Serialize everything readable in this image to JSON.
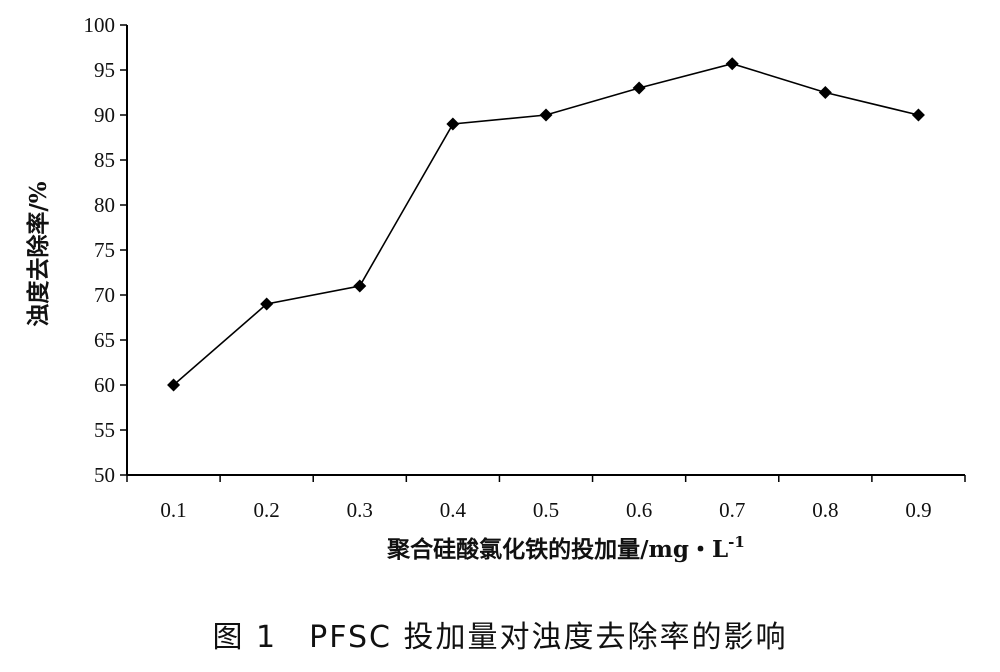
{
  "chart_data": {
    "type": "line",
    "xlabel": "聚合硅酸氯化铁的投加量/mg・L",
    "xlabel_superscript": "-1",
    "ylabel": "浊度去除率/%",
    "x": [
      0.1,
      0.2,
      0.3,
      0.4,
      0.5,
      0.6,
      0.7,
      0.8,
      0.9
    ],
    "x_tick_labels": [
      "0.1",
      "0.2",
      "0.3",
      "0.4",
      "0.5",
      "0.6",
      "0.7",
      "0.8",
      "0.9"
    ],
    "series": [
      {
        "values": [
          60,
          69,
          71,
          89,
          90,
          93,
          95.7,
          92.5,
          90
        ]
      }
    ],
    "ylim": [
      50,
      100
    ],
    "y_ticks": [
      50,
      55,
      60,
      65,
      70,
      75,
      80,
      85,
      90,
      95,
      100
    ],
    "y_tick_labels": [
      "50",
      "55",
      "60",
      "65",
      "70",
      "75",
      "80",
      "85",
      "90",
      "95",
      "100"
    ],
    "grid": false,
    "marker": "diamond",
    "line_color": "#000000"
  },
  "caption": "图 1　PFSC 投加量对浊度去除率的影响"
}
